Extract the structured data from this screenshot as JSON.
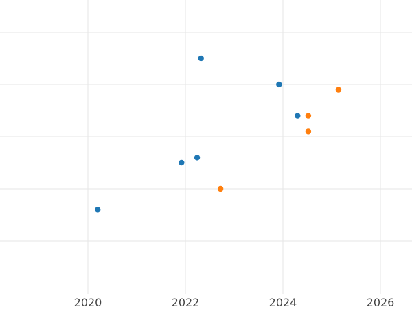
{
  "chart_data": {
    "type": "scatter",
    "title": "",
    "xlabel": "",
    "ylabel": "",
    "grid": true,
    "xlim": [
      2018.2,
      2026.6
    ],
    "ylim": [
      0,
      5.5
    ],
    "x_ticks": [
      2020,
      2022,
      2024,
      2026
    ],
    "x_tick_labels": [
      "2020",
      "2022",
      "2024",
      "2026"
    ],
    "y_gridlines": [
      1,
      2,
      3,
      4,
      5
    ],
    "series": [
      {
        "color": "#1f77b4",
        "points": [
          {
            "x": 2020.2,
            "y": 1.6
          },
          {
            "x": 2021.92,
            "y": 2.5
          },
          {
            "x": 2022.24,
            "y": 2.6
          },
          {
            "x": 2022.32,
            "y": 4.5
          },
          {
            "x": 2023.92,
            "y": 4.0
          },
          {
            "x": 2024.3,
            "y": 3.4
          }
        ]
      },
      {
        "color": "#ff7f0e",
        "points": [
          {
            "x": 2022.72,
            "y": 2.0
          },
          {
            "x": 2024.52,
            "y": 3.1
          },
          {
            "x": 2024.52,
            "y": 3.4
          },
          {
            "x": 2025.14,
            "y": 3.9
          }
        ]
      }
    ]
  }
}
